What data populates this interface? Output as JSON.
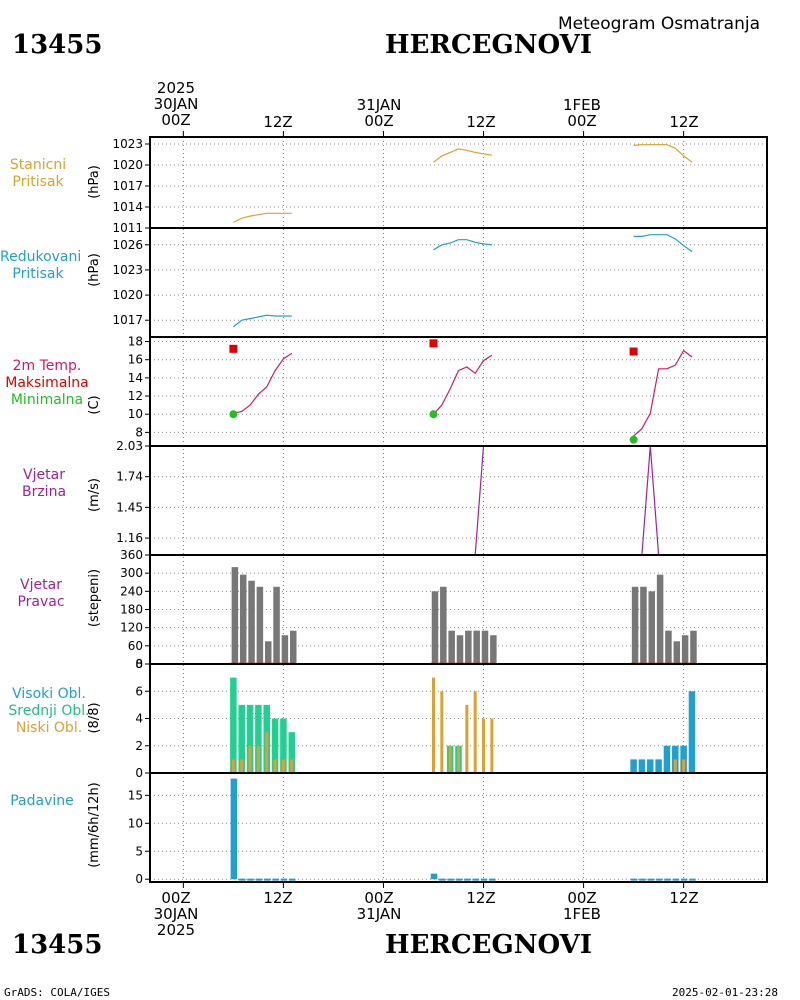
{
  "header": {
    "station_id": "13455",
    "station_name": "HERCEGNOVI",
    "subtitle": "Meteogram Osmatranja"
  },
  "time_axis": {
    "top_labels": [
      {
        "lines": [
          "2025",
          "30JAN",
          "00Z"
        ]
      },
      {
        "lines": [
          "12Z"
        ]
      },
      {
        "lines": [
          "31JAN",
          "00Z"
        ]
      },
      {
        "lines": [
          "12Z"
        ]
      },
      {
        "lines": [
          "1FEB",
          "00Z"
        ]
      },
      {
        "lines": [
          "12Z"
        ]
      }
    ],
    "bottom_labels": [
      {
        "lines": [
          "00Z",
          "30JAN",
          "2025"
        ]
      },
      {
        "lines": [
          "12Z"
        ]
      },
      {
        "lines": [
          "00Z",
          "31JAN"
        ]
      },
      {
        "lines": [
          "12Z"
        ]
      },
      {
        "lines": [
          "00Z",
          "1FEB"
        ]
      },
      {
        "lines": [
          "12Z"
        ]
      }
    ]
  },
  "panels": {
    "pressure": {
      "title": [
        "Stanicni",
        "Pritisak"
      ],
      "unit": "(hPa)",
      "color": "#e0a030"
    },
    "redpressure": {
      "title": [
        "Redukovani",
        "Pritisak"
      ],
      "unit": "(hPa)",
      "color": "#20a0d0"
    },
    "temp": {
      "title_lines": [
        {
          "text": "2m Temp.",
          "color": "#d81860"
        },
        {
          "text": "Maksimalna",
          "color": "#e00000"
        },
        {
          "text": "Minimalna",
          "color": "#20c020"
        }
      ],
      "unit": "(C)"
    },
    "wspeed": {
      "title": [
        "Vjetar",
        "Brzina"
      ],
      "unit": "(m/s)",
      "color": "#a020a0"
    },
    "wdir": {
      "title": [
        "Vjetar",
        "Pravac"
      ],
      "unit": "(stepeni)",
      "color": "#a020a0"
    },
    "cloud": {
      "title_lines": [
        {
          "text": "Visoki Obl.",
          "color": "#20a0d0"
        },
        {
          "text": "Srednji Obl.",
          "color": "#20c080"
        },
        {
          "text": "Niski Obl.",
          "color": "#e0a030"
        }
      ],
      "unit": "(8/8)"
    },
    "precip": {
      "title": [
        "Padavine"
      ],
      "unit": "(mm/6h/12h)",
      "color": "#20a0d0"
    }
  },
  "footer": {
    "left": "GrADS: COLA/IGES",
    "right": "2025-02-01-23:28"
  },
  "chart_data": {
    "type": "line",
    "x_unit": "hours since 2025-01-30 00Z",
    "x_range": [
      -4,
      70
    ],
    "series": [
      {
        "name": "Stanicni Pritisak",
        "panel": "pressure",
        "type": "line",
        "ylim": [
          1011,
          1024
        ],
        "yticks": [
          1011,
          1014,
          1017,
          1020,
          1023
        ],
        "segments": [
          {
            "x": [
              6,
              7,
              8,
              9,
              10,
              11,
              12,
              13
            ],
            "y": [
              1011.8,
              1012.4,
              1012.7,
              1012.9,
              1013.1,
              1013.1,
              1013.1,
              1013.1
            ]
          },
          {
            "x": [
              30,
              31,
              32,
              33,
              34,
              35,
              36,
              37
            ],
            "y": [
              1020.4,
              1021.3,
              1021.8,
              1022.3,
              1022.1,
              1021.8,
              1021.6,
              1021.4
            ]
          },
          {
            "x": [
              54,
              55,
              56,
              57,
              58,
              59,
              60,
              61
            ],
            "y": [
              1022.8,
              1022.9,
              1022.9,
              1022.9,
              1022.9,
              1022.4,
              1021.3,
              1020.4
            ]
          }
        ]
      },
      {
        "name": "Redukovani Pritisak",
        "panel": "redpressure",
        "type": "line",
        "ylim": [
          1015,
          1028
        ],
        "yticks": [
          1017,
          1020,
          1023,
          1026
        ],
        "segments": [
          {
            "x": [
              6,
              7,
              8,
              9,
              10,
              11,
              12,
              13
            ],
            "y": [
              1016.2,
              1017.0,
              1017.2,
              1017.4,
              1017.6,
              1017.5,
              1017.5,
              1017.5
            ]
          },
          {
            "x": [
              30,
              31,
              32,
              33,
              34,
              35,
              36,
              37
            ],
            "y": [
              1025.4,
              1026.0,
              1026.2,
              1026.6,
              1026.6,
              1026.3,
              1026.1,
              1026.0
            ]
          },
          {
            "x": [
              54,
              55,
              56,
              57,
              58,
              59,
              60,
              61
            ],
            "y": [
              1027.0,
              1027.0,
              1027.2,
              1027.2,
              1027.2,
              1026.7,
              1025.9,
              1025.2
            ]
          }
        ]
      },
      {
        "name": "2m Temp.",
        "panel": "temp",
        "type": "line",
        "ylim": [
          6.5,
          18.5
        ],
        "yticks": [
          8,
          10,
          12,
          14,
          16,
          18
        ],
        "segments": [
          {
            "x": [
              6,
              7,
              8,
              9,
              10,
              11,
              12,
              13
            ],
            "y": [
              10.1,
              10.3,
              11.0,
              12.2,
              13.0,
              14.8,
              16.1,
              16.7
            ]
          },
          {
            "x": [
              30,
              31,
              32,
              33,
              34,
              35,
              36,
              37
            ],
            "y": [
              10.0,
              11.0,
              12.8,
              14.8,
              15.2,
              14.5,
              15.9,
              16.5
            ]
          },
          {
            "x": [
              54,
              55,
              56,
              57,
              58,
              59,
              60,
              61
            ],
            "y": [
              7.6,
              8.4,
              10.1,
              15.0,
              15.0,
              15.4,
              17.0,
              16.3
            ]
          }
        ]
      },
      {
        "name": "Maksimalna",
        "panel": "temp",
        "type": "scatter",
        "x": [
          6,
          30,
          54
        ],
        "y": [
          17.2,
          17.8,
          16.9
        ]
      },
      {
        "name": "Minimalna",
        "panel": "temp",
        "type": "scatter",
        "x": [
          6,
          30,
          54
        ],
        "y": [
          10.0,
          10.0,
          7.2
        ]
      },
      {
        "name": "Vjetar Brzina",
        "panel": "wspeed",
        "type": "line",
        "ylim": [
          1.0,
          2.03
        ],
        "yticks": [
          1.16,
          1.45,
          1.74,
          2.03
        ],
        "segments": [
          {
            "x": [
              6,
              7,
              8,
              9,
              10,
              11,
              12,
              13
            ],
            "y": [
              1.0,
              1.0,
              1.0,
              1.0,
              1.0,
              1.0,
              1.0,
              1.0
            ]
          },
          {
            "x": [
              30,
              31,
              32,
              33,
              34,
              35,
              36,
              37
            ],
            "y": [
              1.0,
              1.0,
              1.0,
              1.0,
              1.0,
              1.0,
              2.03,
              2.03
            ]
          },
          {
            "x": [
              54,
              55,
              56,
              57,
              58,
              59,
              60,
              61
            ],
            "y": [
              1.0,
              1.0,
              2.03,
              1.0,
              1.0,
              1.0,
              1.0,
              1.0
            ]
          }
        ]
      },
      {
        "name": "Vjetar Pravac",
        "panel": "wdir",
        "type": "bar",
        "ylim": [
          0,
          360
        ],
        "yticks": [
          0,
          60,
          120,
          180,
          240,
          300,
          360
        ],
        "x": [
          6,
          7,
          8,
          9,
          10,
          11,
          12,
          13,
          30,
          31,
          32,
          33,
          34,
          35,
          36,
          37,
          54,
          55,
          56,
          57,
          58,
          59,
          60,
          61
        ],
        "values": [
          320,
          295,
          275,
          255,
          75,
          255,
          95,
          110,
          240,
          255,
          110,
          95,
          110,
          110,
          110,
          95,
          255,
          255,
          240,
          295,
          110,
          75,
          95,
          110
        ]
      },
      {
        "name": "Visoki Obl.",
        "panel": "cloud",
        "type": "bar",
        "ylim": [
          0,
          8
        ],
        "yticks": [
          0,
          2,
          4,
          6,
          8
        ],
        "x": [
          54,
          55,
          56,
          57,
          58,
          59,
          60,
          61
        ],
        "values": [
          1,
          1,
          1,
          1,
          2,
          2,
          2,
          6
        ]
      },
      {
        "name": "Srednji Obl.",
        "panel": "cloud",
        "type": "bar",
        "x": [
          6,
          7,
          8,
          9,
          10,
          11,
          12,
          13,
          32,
          33
        ],
        "values": [
          7,
          5,
          5,
          5,
          5,
          4,
          4,
          3,
          2,
          2
        ]
      },
      {
        "name": "Niski Obl.",
        "panel": "cloud",
        "type": "bar",
        "x": [
          6,
          7,
          8,
          9,
          10,
          11,
          12,
          13,
          30,
          31,
          32,
          33,
          34,
          35,
          36,
          37,
          59,
          60
        ],
        "values": [
          1,
          1,
          2,
          2,
          3,
          1,
          1,
          1,
          7,
          6,
          2,
          2,
          5,
          6,
          4,
          4,
          1,
          1
        ]
      },
      {
        "name": "Padavine",
        "panel": "precip",
        "type": "bar",
        "ylim": [
          -0.5,
          19
        ],
        "yticks": [
          0,
          5,
          10,
          15
        ],
        "x": [
          6,
          7,
          8,
          9,
          10,
          11,
          12,
          13,
          30,
          31,
          32,
          33,
          34,
          35,
          36,
          37,
          54,
          55,
          56,
          57,
          58,
          59,
          60,
          61
        ],
        "values": [
          18,
          0.1,
          0.1,
          0.1,
          0.1,
          0.1,
          0.1,
          0.1,
          1.0,
          0.1,
          0.1,
          0.1,
          0.1,
          0.1,
          0.1,
          0.1,
          0.1,
          0.1,
          0.1,
          0.1,
          0.1,
          0.1,
          0.1,
          0.1
        ]
      }
    ]
  }
}
